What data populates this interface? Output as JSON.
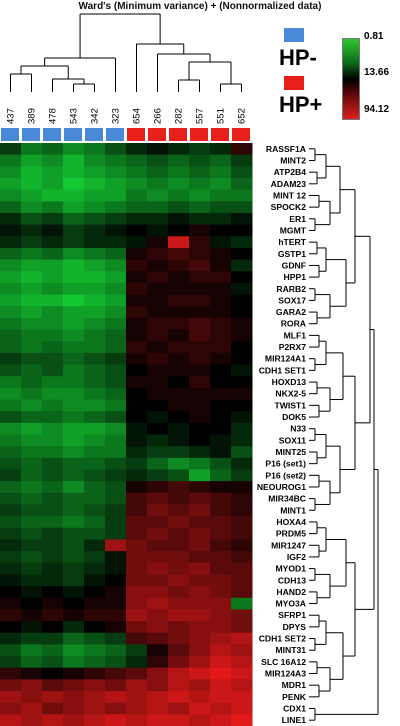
{
  "title": "Ward's (Minimum variance) + (Nonnormalized data)",
  "legend": {
    "groups": [
      {
        "label": "HP-",
        "color": "#4a88d8"
      },
      {
        "label": "HP+",
        "color": "#e8201c"
      }
    ],
    "scale": {
      "top": "0.81",
      "mid": "13.66",
      "bottom": "94.12"
    }
  },
  "samples": [
    {
      "id": "437",
      "group": "HP-"
    },
    {
      "id": "389",
      "group": "HP-"
    },
    {
      "id": "478",
      "group": "HP-"
    },
    {
      "id": "543",
      "group": "HP-"
    },
    {
      "id": "342",
      "group": "HP-"
    },
    {
      "id": "323",
      "group": "HP-"
    },
    {
      "id": "654",
      "group": "HP+"
    },
    {
      "id": "266",
      "group": "HP+"
    },
    {
      "id": "282",
      "group": "HP+"
    },
    {
      "id": "557",
      "group": "HP+"
    },
    {
      "id": "551",
      "group": "HP+"
    },
    {
      "id": "652",
      "group": "HP+"
    }
  ],
  "genes": [
    "RASSF1A",
    "MINT2",
    "ATP2B4",
    "ADAM23",
    "MINT 12",
    "SPOCK2",
    "ER1",
    "MGMT",
    "hTERT",
    "GSTP1",
    "GDNF",
    "HPP1",
    "RARB2",
    "SOX17",
    "GARA2",
    "RORA",
    "MLF1",
    "P2RX7",
    "MIR124A1",
    "CDH1 SET1",
    "HOXD13",
    "NKX2-5",
    "TWIST1",
    "DOK5",
    "N33",
    "SOX11",
    "MINT25",
    "P16 (set1)",
    "P16 (set2)",
    "NEOUROG1",
    "MIR34BC",
    "MINT1",
    "HOXA4",
    "PRDM5",
    "MIR1247",
    "IGF2",
    "MYOD1",
    "CDH13",
    "HAND2",
    "MYO3A",
    "SFRP1",
    "DPYS",
    "CDH1 SET2",
    "MINT31",
    "SLC 16A12",
    "MIR124A3",
    "MDR1",
    "PENK",
    "CDX1",
    "LINE1"
  ],
  "matrix": [
    [
      -0.3,
      -0.6,
      -0.5,
      -0.7,
      -0.6,
      -0.4,
      -0.2,
      -0.1,
      -0.2,
      -0.3,
      -0.2,
      0.2
    ],
    [
      -0.6,
      -0.8,
      -0.7,
      -0.9,
      -0.7,
      -0.6,
      -0.5,
      -0.4,
      -0.5,
      -0.4,
      -0.5,
      -0.3
    ],
    [
      -0.7,
      -0.9,
      -0.8,
      -0.9,
      -0.8,
      -0.7,
      -0.6,
      -0.5,
      -0.6,
      -0.5,
      -0.6,
      -0.4
    ],
    [
      -0.8,
      -0.9,
      -0.8,
      -1.0,
      -0.9,
      -0.8,
      -0.7,
      -0.6,
      -0.7,
      -0.6,
      -0.7,
      -0.5
    ],
    [
      -0.7,
      -0.8,
      -0.9,
      -0.9,
      -0.8,
      -0.8,
      -0.6,
      -0.7,
      -0.6,
      -0.7,
      -0.6,
      -0.6
    ],
    [
      -0.5,
      -0.7,
      -0.6,
      -0.8,
      -0.7,
      -0.6,
      -0.5,
      -0.5,
      -0.4,
      -0.5,
      -0.4,
      -0.4
    ],
    [
      -0.2,
      -0.4,
      -0.3,
      -0.5,
      -0.4,
      -0.3,
      -0.2,
      -0.2,
      -0.1,
      -0.2,
      -0.2,
      -0.1
    ],
    [
      -0.1,
      -0.2,
      -0.1,
      -0.3,
      -0.2,
      -0.1,
      0.0,
      -0.1,
      0.0,
      0.1,
      0.0,
      0.0
    ],
    [
      -0.2,
      -0.3,
      -0.2,
      -0.3,
      -0.2,
      -0.2,
      -0.1,
      0.1,
      0.9,
      0.2,
      -0.1,
      -0.2
    ],
    [
      -0.5,
      -0.6,
      -0.5,
      -0.7,
      -0.6,
      -0.5,
      0.1,
      0.2,
      0.3,
      0.2,
      0.1,
      0.0
    ],
    [
      -0.7,
      -0.8,
      -0.8,
      -0.9,
      -0.8,
      -0.7,
      0.2,
      0.1,
      0.2,
      0.3,
      0.1,
      -0.2
    ],
    [
      -0.8,
      -0.9,
      -0.8,
      -0.9,
      -0.9,
      -0.8,
      0.1,
      0.2,
      0.1,
      0.2,
      0.2,
      0.0
    ],
    [
      -0.7,
      -0.8,
      -0.7,
      -0.8,
      -0.8,
      -0.7,
      0.2,
      0.1,
      0.1,
      0.1,
      0.1,
      -0.1
    ],
    [
      -0.8,
      -0.9,
      -0.9,
      -1.0,
      -0.9,
      -0.8,
      0.1,
      0.1,
      0.2,
      0.2,
      0.1,
      0.0
    ],
    [
      -0.7,
      -0.8,
      -0.7,
      -0.8,
      -0.8,
      -0.7,
      0.2,
      0.1,
      0.1,
      0.1,
      0.1,
      0.0
    ],
    [
      -0.6,
      -0.7,
      -0.7,
      -0.8,
      -0.7,
      -0.6,
      0.1,
      0.2,
      0.2,
      0.3,
      0.2,
      0.1
    ],
    [
      -0.5,
      -0.6,
      -0.6,
      -0.7,
      -0.6,
      -0.5,
      0.1,
      0.2,
      0.1,
      0.3,
      0.2,
      0.1
    ],
    [
      -0.5,
      -0.6,
      -0.5,
      -0.6,
      -0.6,
      -0.5,
      0.2,
      0.1,
      0.2,
      0.2,
      0.2,
      0.0
    ],
    [
      -0.3,
      -0.4,
      -0.4,
      -0.5,
      -0.4,
      -0.3,
      0.1,
      0.2,
      0.1,
      0.2,
      0.1,
      0.0
    ],
    [
      -0.4,
      -0.5,
      -0.4,
      -0.6,
      -0.5,
      -0.4,
      0.0,
      0.1,
      0.1,
      0.1,
      0.0,
      -0.1
    ],
    [
      -0.6,
      -0.5,
      -0.6,
      -0.6,
      -0.5,
      -0.4,
      0.1,
      0.1,
      0.0,
      0.2,
      0.0,
      0.0
    ],
    [
      -0.7,
      -0.6,
      -0.7,
      -0.7,
      -0.6,
      -0.5,
      0.0,
      0.1,
      0.1,
      0.1,
      0.1,
      0.1
    ],
    [
      -0.6,
      -0.7,
      -0.6,
      -0.7,
      -0.7,
      -0.6,
      0.0,
      0.0,
      0.1,
      0.1,
      0.0,
      0.0
    ],
    [
      -0.4,
      -0.5,
      -0.5,
      -0.6,
      -0.5,
      -0.4,
      0.0,
      -0.1,
      0.0,
      0.1,
      0.0,
      -0.1
    ],
    [
      -0.7,
      -0.8,
      -0.7,
      -0.8,
      -0.8,
      -0.7,
      -0.1,
      0.0,
      -0.1,
      0.0,
      0.0,
      -0.2
    ],
    [
      -0.6,
      -0.7,
      -0.7,
      -0.8,
      -0.7,
      -0.6,
      -0.1,
      -0.2,
      -0.1,
      0.0,
      -0.1,
      -0.2
    ],
    [
      -0.5,
      -0.6,
      -0.6,
      -0.7,
      -0.6,
      -0.6,
      -0.2,
      -0.3,
      -0.3,
      -0.2,
      -0.1,
      -0.4
    ],
    [
      -0.4,
      -0.5,
      -0.4,
      -0.5,
      -0.5,
      -0.4,
      -0.3,
      -0.5,
      -0.7,
      -0.6,
      -0.4,
      -0.2
    ],
    [
      -0.3,
      -0.5,
      -0.4,
      -0.5,
      -0.4,
      -0.3,
      -0.2,
      -0.3,
      -0.4,
      -0.8,
      -0.5,
      -0.3
    ],
    [
      -0.5,
      -0.6,
      -0.5,
      -0.7,
      -0.5,
      -0.4,
      0.1,
      0.2,
      0.3,
      0.2,
      0.1,
      0.1
    ],
    [
      -0.4,
      -0.5,
      -0.4,
      -0.5,
      -0.5,
      -0.4,
      0.3,
      0.4,
      0.3,
      0.4,
      0.3,
      0.2
    ],
    [
      -0.3,
      -0.4,
      -0.4,
      -0.5,
      -0.4,
      -0.3,
      0.3,
      0.5,
      0.4,
      0.5,
      0.3,
      0.2
    ],
    [
      -0.4,
      -0.5,
      -0.5,
      -0.6,
      -0.5,
      -0.3,
      0.4,
      0.4,
      0.5,
      0.4,
      0.4,
      0.3
    ],
    [
      -0.3,
      -0.4,
      -0.3,
      -0.4,
      -0.4,
      -0.3,
      0.4,
      0.5,
      0.4,
      0.5,
      0.4,
      0.3
    ],
    [
      -0.2,
      -0.3,
      -0.3,
      -0.4,
      -0.2,
      0.7,
      0.5,
      0.4,
      0.4,
      0.5,
      0.3,
      0.2
    ],
    [
      -0.3,
      -0.4,
      -0.3,
      -0.4,
      -0.3,
      -0.1,
      0.5,
      0.5,
      0.5,
      0.4,
      0.4,
      0.3
    ],
    [
      -0.2,
      -0.3,
      -0.2,
      -0.3,
      -0.2,
      -0.1,
      0.5,
      0.6,
      0.5,
      0.6,
      0.4,
      0.4
    ],
    [
      -0.1,
      -0.2,
      -0.2,
      -0.3,
      -0.1,
      0.0,
      0.5,
      0.5,
      0.6,
      0.5,
      0.5,
      0.4
    ],
    [
      0.0,
      -0.1,
      0.0,
      -0.1,
      0.0,
      0.1,
      0.6,
      0.6,
      0.5,
      0.6,
      0.5,
      0.4
    ],
    [
      0.1,
      0.0,
      0.1,
      0.0,
      0.1,
      0.1,
      0.6,
      0.7,
      0.6,
      0.6,
      0.6,
      -0.6
    ],
    [
      0.2,
      0.1,
      0.2,
      0.1,
      0.2,
      0.2,
      0.7,
      0.6,
      0.7,
      0.7,
      0.6,
      0.5
    ],
    [
      0.0,
      -0.1,
      0.0,
      -0.2,
      0.0,
      0.1,
      0.5,
      0.6,
      0.5,
      0.6,
      0.6,
      0.5
    ],
    [
      -0.2,
      -0.3,
      -0.3,
      -0.5,
      -0.4,
      -0.3,
      0.3,
      0.4,
      0.5,
      0.6,
      0.7,
      0.8
    ],
    [
      -0.4,
      -0.6,
      -0.5,
      -0.7,
      -0.6,
      -0.5,
      -0.3,
      0.1,
      0.4,
      0.6,
      0.8,
      0.7
    ],
    [
      -0.3,
      -0.5,
      -0.4,
      -0.6,
      -0.5,
      -0.4,
      -0.2,
      0.2,
      0.5,
      0.7,
      0.9,
      0.8
    ],
    [
      0.2,
      0.1,
      0.0,
      0.1,
      0.2,
      0.3,
      0.4,
      0.6,
      0.8,
      0.9,
      1.0,
      0.9
    ],
    [
      0.5,
      0.6,
      0.4,
      0.5,
      0.6,
      0.5,
      0.7,
      0.6,
      0.8,
      0.7,
      0.9,
      0.8
    ],
    [
      0.7,
      0.6,
      0.7,
      0.6,
      0.7,
      0.8,
      0.7,
      0.8,
      0.9,
      0.8,
      0.9,
      0.9
    ],
    [
      0.6,
      0.7,
      0.5,
      0.6,
      0.7,
      0.6,
      0.7,
      0.8,
      0.7,
      0.9,
      0.8,
      0.9
    ],
    [
      0.8,
      0.7,
      0.8,
      0.7,
      0.8,
      0.9,
      0.8,
      0.9,
      0.9,
      0.8,
      0.9,
      1.0
    ]
  ]
}
